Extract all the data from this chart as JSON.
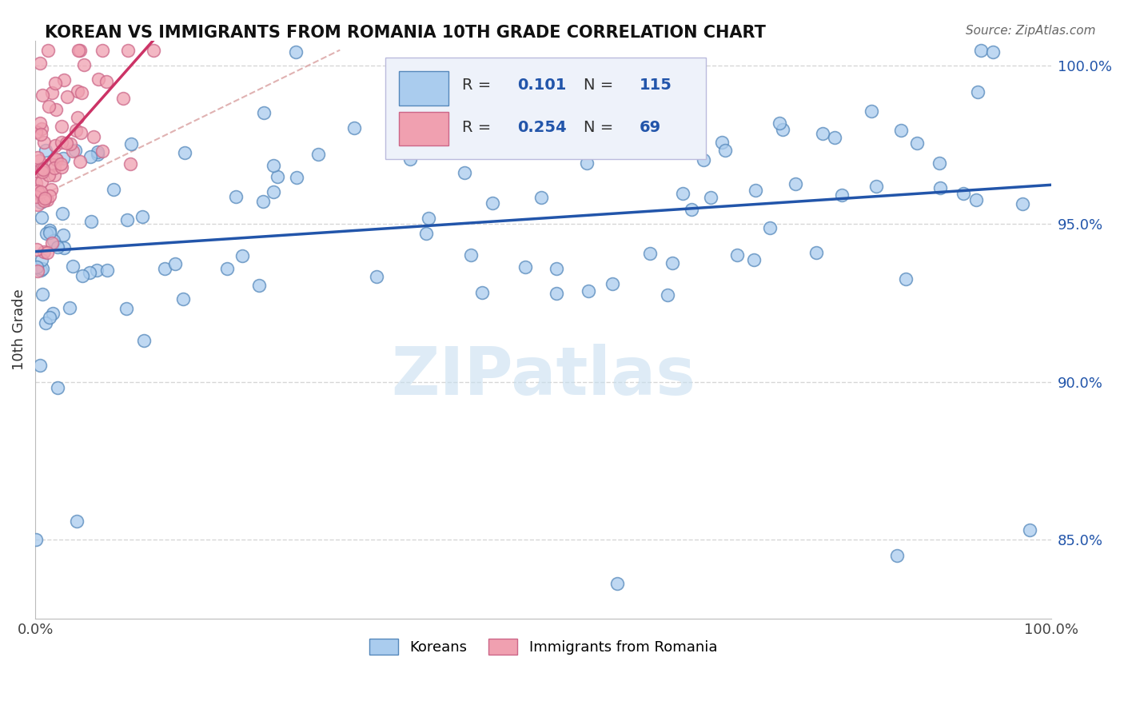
{
  "title": "KOREAN VS IMMIGRANTS FROM ROMANIA 10TH GRADE CORRELATION CHART",
  "source_text": "Source: ZipAtlas.com",
  "ylabel": "10th Grade",
  "xlim": [
    0.0,
    1.0
  ],
  "ylim": [
    0.825,
    1.008
  ],
  "yticks": [
    0.85,
    0.9,
    0.95,
    1.0
  ],
  "ytick_labels": [
    "85.0%",
    "90.0%",
    "95.0%",
    "100.0%"
  ],
  "xtick_labels": [
    "0.0%",
    "100.0%"
  ],
  "xticks": [
    0.0,
    1.0
  ],
  "korean_R": 0.101,
  "korean_N": 115,
  "romania_R": 0.254,
  "romania_N": 69,
  "blue_scatter_color": "#aaccee",
  "blue_edge_color": "#5588bb",
  "pink_scatter_color": "#f0a0b0",
  "pink_edge_color": "#cc6688",
  "blue_line_color": "#2255aa",
  "pink_line_color": "#cc3366",
  "dash_line_color": "#ddaaaa",
  "legend_blue_label": "Koreans",
  "legend_pink_label": "Immigrants from Romania",
  "grid_color": "#cccccc",
  "watermark_color": "#c8dff0",
  "korean_seed": 42,
  "romania_seed": 99
}
